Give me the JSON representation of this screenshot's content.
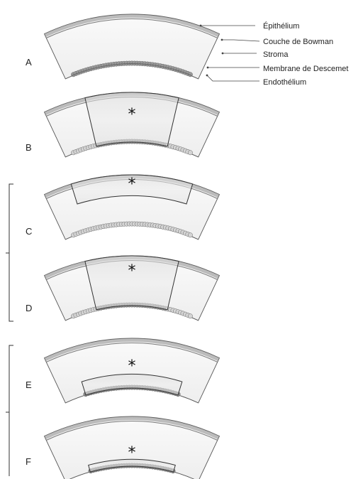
{
  "legend": {
    "epithelium": "Épithélium",
    "bowman": "Couche de Bowman",
    "stroma": "Stroma",
    "descemet": "Membrane de Descemet",
    "endothelium": "Endothélium"
  },
  "panels": [
    {
      "letter": "A",
      "marker": ""
    },
    {
      "letter": "B",
      "marker": "*"
    },
    {
      "letter": "C",
      "marker": "*"
    },
    {
      "letter": "D",
      "marker": "*"
    },
    {
      "letter": "E",
      "marker": "*"
    },
    {
      "letter": "F",
      "marker": "*"
    }
  ],
  "colors": {
    "stroma_fill": "#f4f4f4",
    "graft_fill": "#e6e6e6",
    "outline": "#555555",
    "epithelium": "#8a8a8a",
    "endothelium_cell": "#9a9a9a",
    "endothelium_faded": "#d4d4d4"
  }
}
